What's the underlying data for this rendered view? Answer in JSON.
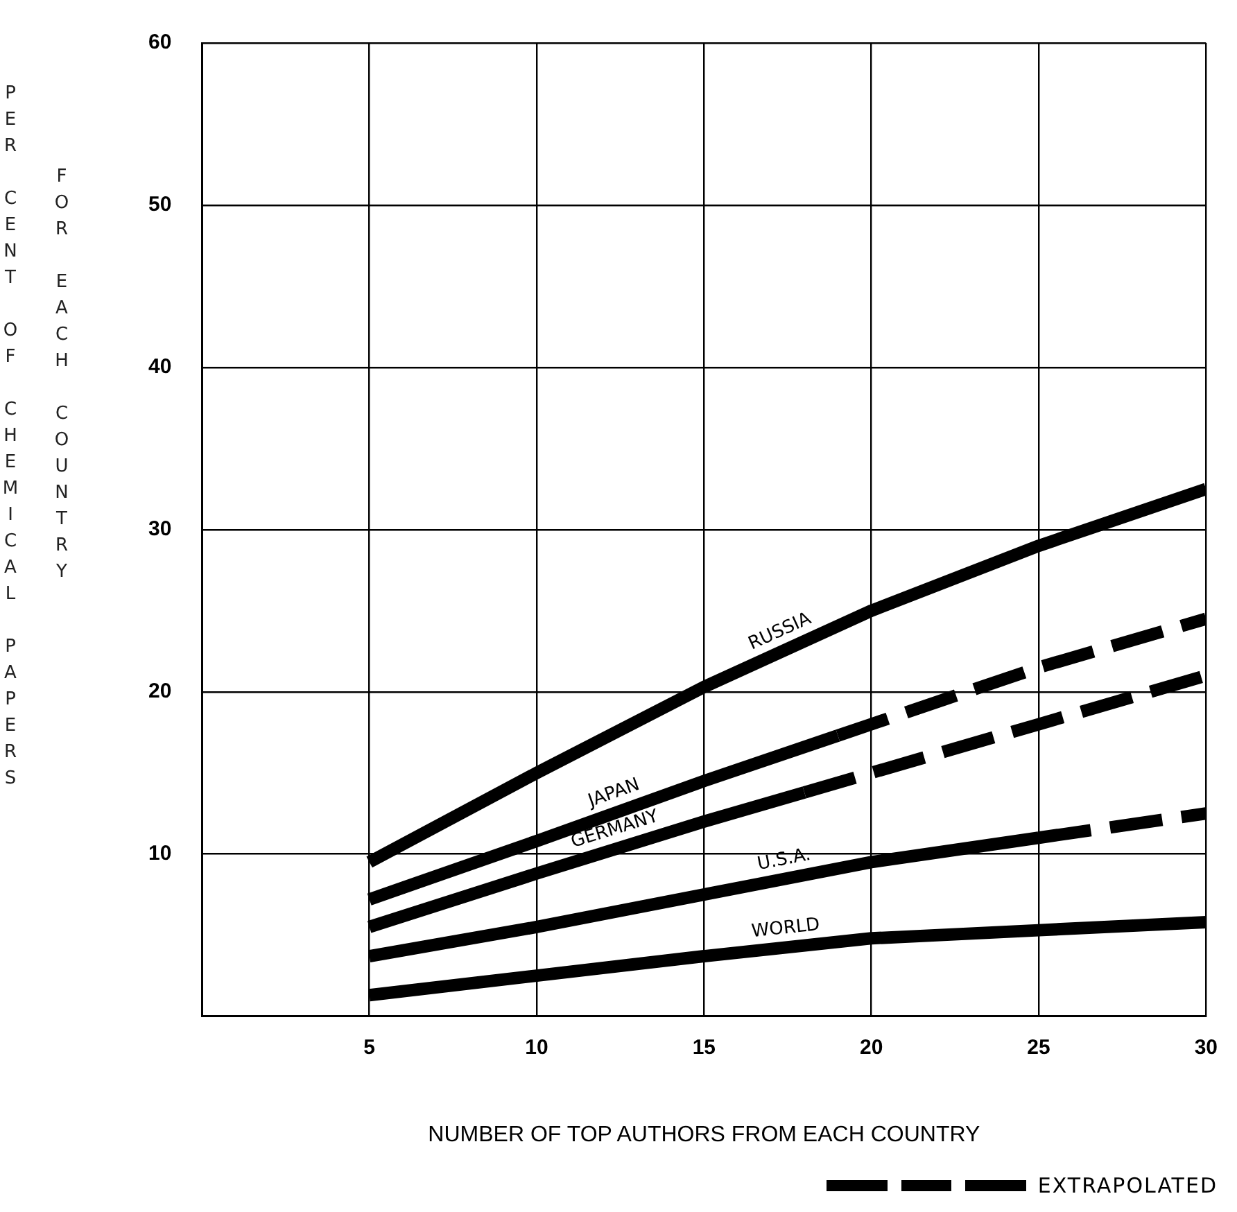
{
  "chart_data": {
    "type": "line",
    "xlabel": "NUMBER OF TOP AUTHORS FROM EACH COUNTRY",
    "ylabel": "PER CENT OF CHEMICAL PAPERS\nFOR EACH COUNTRY",
    "xlim": [
      0,
      30
    ],
    "xticks": [
      5,
      10,
      15,
      20,
      25,
      30
    ],
    "ylim": [
      0,
      60
    ],
    "yticks": [
      10,
      20,
      30,
      40,
      50,
      60
    ],
    "grid": true,
    "legend": "bottom right",
    "marker": "none",
    "series": [
      {
        "name": "RUSSIA",
        "color": "#000000",
        "x": [
          5,
          10,
          15,
          20,
          25,
          30
        ],
        "values": [
          9.5,
          15,
          20.3,
          25,
          29,
          32.5
        ]
      },
      {
        "name": "JAPAN",
        "color": "#000000",
        "x": [
          5,
          10,
          15,
          19
        ],
        "values": [
          7.2,
          10.8,
          14.5,
          17.3
        ]
      },
      {
        "color": "#000000",
        "line_style": "dashed",
        "x": [
          19,
          20,
          25,
          30
        ],
        "values": [
          17.3,
          18,
          21.5,
          24.5
        ]
      },
      {
        "name": "GERMANY",
        "color": "#000000",
        "x": [
          5,
          10,
          15,
          18
        ],
        "values": [
          5.5,
          8.8,
          12,
          13.8
        ]
      },
      {
        "color": "#000000",
        "line_style": "dashed",
        "x": [
          18,
          20,
          25,
          30
        ],
        "values": [
          13.8,
          15,
          18,
          21
        ]
      },
      {
        "name": "U.S.A.",
        "color": "#000000",
        "x": [
          5,
          10,
          15,
          20,
          25
        ],
        "values": [
          3.7,
          5.5,
          7.5,
          9.5,
          11
        ]
      },
      {
        "name": "EXTRAPOLATED",
        "color": "#000000",
        "line_style": "dashed",
        "x": [
          25,
          30
        ],
        "values": [
          11,
          12.5
        ]
      },
      {
        "name": "WORLD",
        "color": "#000000",
        "x": [
          5,
          10,
          15,
          20,
          25,
          30
        ],
        "values": [
          1.3,
          2.5,
          3.7,
          4.8,
          5.3,
          5.8
        ]
      }
    ]
  }
}
